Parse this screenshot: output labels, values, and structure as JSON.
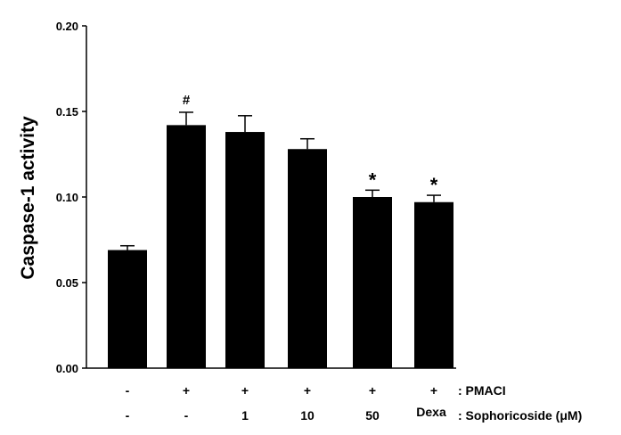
{
  "chart_data": {
    "type": "bar",
    "ylabel": "Caspase-1 activity",
    "ylim": [
      0,
      0.2
    ],
    "yticks": [
      "0.00",
      "0.05",
      "0.10",
      "0.15",
      "0.20"
    ],
    "grid": false,
    "bar_color": "#000000",
    "values": [
      0.069,
      0.142,
      0.138,
      0.128,
      0.1,
      0.097
    ],
    "errors": [
      0.0025,
      0.0075,
      0.0095,
      0.006,
      0.004,
      0.004
    ],
    "annotations": [
      "",
      "#",
      "",
      "",
      "*",
      "*"
    ],
    "rows": [
      {
        "label": ": PMACI",
        "values": [
          "-",
          "+",
          "+",
          "+",
          "+",
          "+"
        ]
      },
      {
        "label": ": Sophoricoside (μM)",
        "values": [
          "-",
          "-",
          "1",
          "10",
          "50",
          "Dexa"
        ]
      }
    ]
  }
}
